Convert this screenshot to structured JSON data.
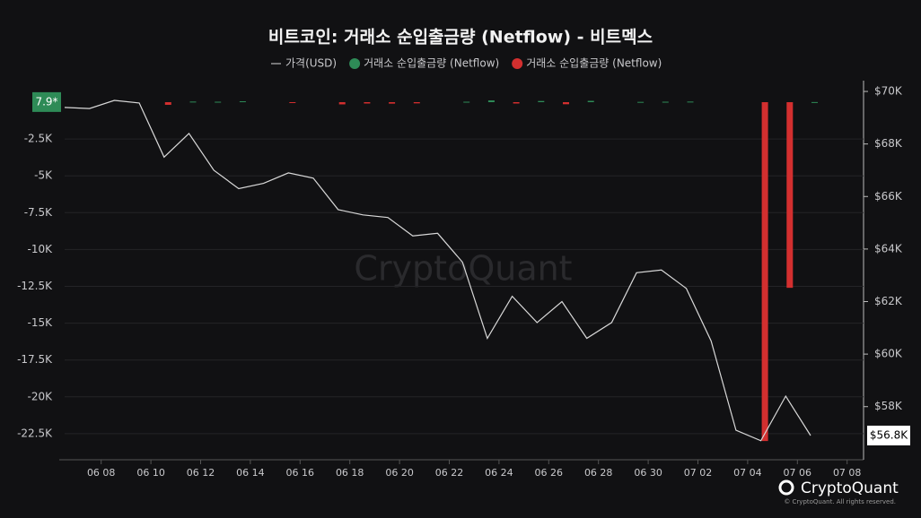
{
  "chart_data": {
    "type": "bar-line",
    "title": "비트코인: 거래소 순입출금량 (Netflow) - 비트멕스",
    "categories": [
      null,
      "06 08",
      null,
      "06 10",
      null,
      "06 12",
      null,
      "06 14",
      null,
      "06 16",
      null,
      "06 18",
      null,
      "06 20",
      null,
      "06 22",
      null,
      "06 24",
      null,
      "06 26",
      null,
      "06 28",
      null,
      "06 30",
      null,
      "07 02",
      null,
      "07 04",
      null,
      "07 06",
      null,
      "07 08"
    ],
    "series": [
      {
        "name": "가격(USD)",
        "type": "line",
        "axis": "y2",
        "color": "#d9d9d9",
        "values": [
          69390,
          69350,
          69660,
          69560,
          67500,
          68400,
          67000,
          66300,
          66500,
          66900,
          66700,
          65500,
          65300,
          65200,
          64500,
          64600,
          63500,
          60600,
          62200,
          61200,
          62000,
          60600,
          61200,
          63100,
          63200,
          62500,
          60500,
          57100,
          56700,
          58400,
          56900,
          null
        ]
      },
      {
        "name": "거래소 순입출금량 (Netflow)",
        "type": "bar",
        "color": "#2e8b57",
        "values": [
          null,
          null,
          null,
          null,
          null,
          40,
          30,
          60,
          null,
          null,
          null,
          null,
          null,
          null,
          null,
          null,
          30,
          120,
          null,
          80,
          null,
          90,
          null,
          20,
          30,
          40,
          null,
          null,
          null,
          null,
          7.9,
          null
        ]
      },
      {
        "name": "거래소 순입출금량 (Netflow)",
        "type": "bar",
        "color": "#d32f2f",
        "values": [
          null,
          null,
          null,
          null,
          -180,
          null,
          null,
          null,
          null,
          -60,
          null,
          -150,
          -90,
          -100,
          -80,
          null,
          null,
          null,
          -90,
          null,
          -140,
          null,
          null,
          null,
          null,
          null,
          null,
          null,
          -23000,
          -12600,
          null,
          null
        ]
      }
    ],
    "ylim": [
      1156,
      -24088
    ],
    "yticks": [
      {
        "value": -2500,
        "label": "-2.5K"
      },
      {
        "value": -5000,
        "label": "-5K"
      },
      {
        "value": -7500,
        "label": "-7.5K"
      },
      {
        "value": -10000,
        "label": "-10K"
      },
      {
        "value": -12500,
        "label": "-12.5K"
      },
      {
        "value": -15000,
        "label": "-15K"
      },
      {
        "value": -17500,
        "label": "-17.5K"
      },
      {
        "value": -20000,
        "label": "-20K"
      },
      {
        "value": -22500,
        "label": "-22.5K"
      }
    ],
    "y2lim": [
      56080,
      70240
    ],
    "y2ticks": [
      {
        "value": 58000,
        "label": "$58K"
      },
      {
        "value": 60000,
        "label": "$60K"
      },
      {
        "value": 62000,
        "label": "$62K"
      },
      {
        "value": 64000,
        "label": "$64K"
      },
      {
        "value": 66000,
        "label": "$66K"
      },
      {
        "value": 68000,
        "label": "$68K"
      },
      {
        "value": 70000,
        "label": "$70K"
      }
    ],
    "grid": true,
    "annotations": {
      "last_netflow": "7.9*",
      "last_price": "$56.8K",
      "watermark": "CryptoQuant",
      "brand": "CryptoQuant",
      "copyright": "© CryptoQuant. All rights reserved."
    }
  }
}
